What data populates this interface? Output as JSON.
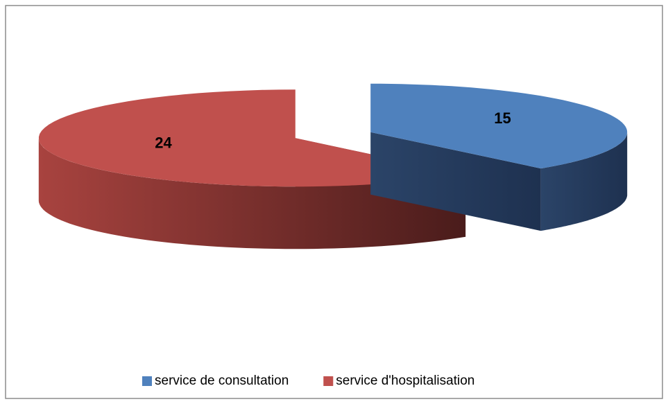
{
  "chart_data": {
    "type": "pie",
    "categories": [
      "service de consultation",
      "service d'hospitalisation"
    ],
    "values": [
      15,
      24
    ],
    "colors": [
      "#4f81bd",
      "#c0504d"
    ],
    "legend": "bottom"
  }
}
